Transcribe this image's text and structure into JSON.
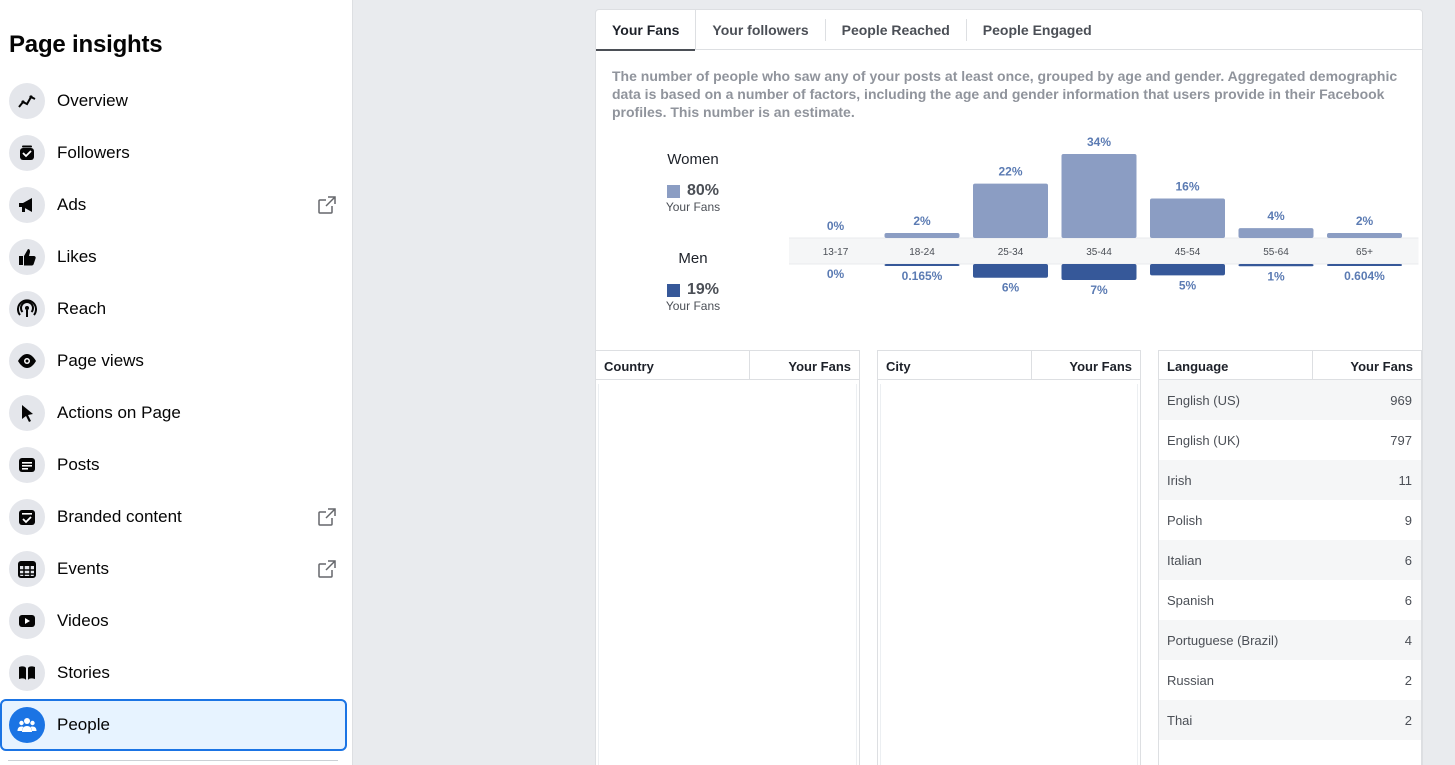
{
  "sidebar": {
    "title": "Page insights",
    "items": [
      {
        "label": "Overview",
        "icon": "trend-icon",
        "external": false,
        "active": false
      },
      {
        "label": "Followers",
        "icon": "followers-icon",
        "external": false,
        "active": false
      },
      {
        "label": "Ads",
        "icon": "megaphone-icon",
        "external": true,
        "active": false
      },
      {
        "label": "Likes",
        "icon": "thumbs-up-icon",
        "external": false,
        "active": false
      },
      {
        "label": "Reach",
        "icon": "broadcast-icon",
        "external": false,
        "active": false
      },
      {
        "label": "Page views",
        "icon": "eye-icon",
        "external": false,
        "active": false
      },
      {
        "label": "Actions on Page",
        "icon": "cursor-icon",
        "external": false,
        "active": false
      },
      {
        "label": "Posts",
        "icon": "post-icon",
        "external": false,
        "active": false
      },
      {
        "label": "Branded content",
        "icon": "branded-content-icon",
        "external": true,
        "active": false
      },
      {
        "label": "Events",
        "icon": "calendar-icon",
        "external": true,
        "active": false
      },
      {
        "label": "Videos",
        "icon": "video-icon",
        "external": false,
        "active": false
      },
      {
        "label": "Stories",
        "icon": "book-icon",
        "external": false,
        "active": false
      },
      {
        "label": "People",
        "icon": "people-icon",
        "external": false,
        "active": true
      }
    ]
  },
  "tabs": [
    "Your Fans",
    "Your followers",
    "People Reached",
    "People Engaged"
  ],
  "active_tab": "Your Fans",
  "description": "The number of people who saw any of your posts at least once, grouped by age and gender. Aggregated demographic data is based on a number of factors, including the age and gender information that users provide in their Facebook profiles. This number is an estimate.",
  "legend": {
    "women": {
      "title": "Women",
      "pct": "80%",
      "sub": "Your Fans",
      "color": "#8b9dc3"
    },
    "men": {
      "title": "Men",
      "pct": "19%",
      "sub": "Your Fans",
      "color": "#365899"
    }
  },
  "chart_data": {
    "type": "bar",
    "categories": [
      "13-17",
      "18-24",
      "25-34",
      "35-44",
      "45-54",
      "55-64",
      "65+"
    ],
    "series": [
      {
        "name": "Women",
        "values": [
          0,
          2,
          22,
          34,
          16,
          4,
          2
        ],
        "labels": [
          "0%",
          "2%",
          "22%",
          "34%",
          "16%",
          "4%",
          "2%"
        ]
      },
      {
        "name": "Men",
        "values": [
          0,
          0.165,
          6,
          7,
          5,
          1,
          0.604
        ],
        "labels": [
          "0%",
          "0.165%",
          "6%",
          "7%",
          "5%",
          "1%",
          "0.604%"
        ]
      }
    ]
  },
  "tables": {
    "country": {
      "col1": "Country",
      "col2": "Your Fans",
      "rows": []
    },
    "city": {
      "col1": "City",
      "col2": "Your Fans",
      "rows": []
    },
    "language": {
      "col1": "Language",
      "col2": "Your Fans",
      "rows": [
        {
          "name": "English (US)",
          "value": "969"
        },
        {
          "name": "English (UK)",
          "value": "797"
        },
        {
          "name": "Irish",
          "value": "11"
        },
        {
          "name": "Polish",
          "value": "9"
        },
        {
          "name": "Italian",
          "value": "6"
        },
        {
          "name": "Spanish",
          "value": "6"
        },
        {
          "name": "Portuguese (Brazil)",
          "value": "4"
        },
        {
          "name": "Russian",
          "value": "2"
        },
        {
          "name": "Thai",
          "value": "2"
        }
      ]
    }
  }
}
